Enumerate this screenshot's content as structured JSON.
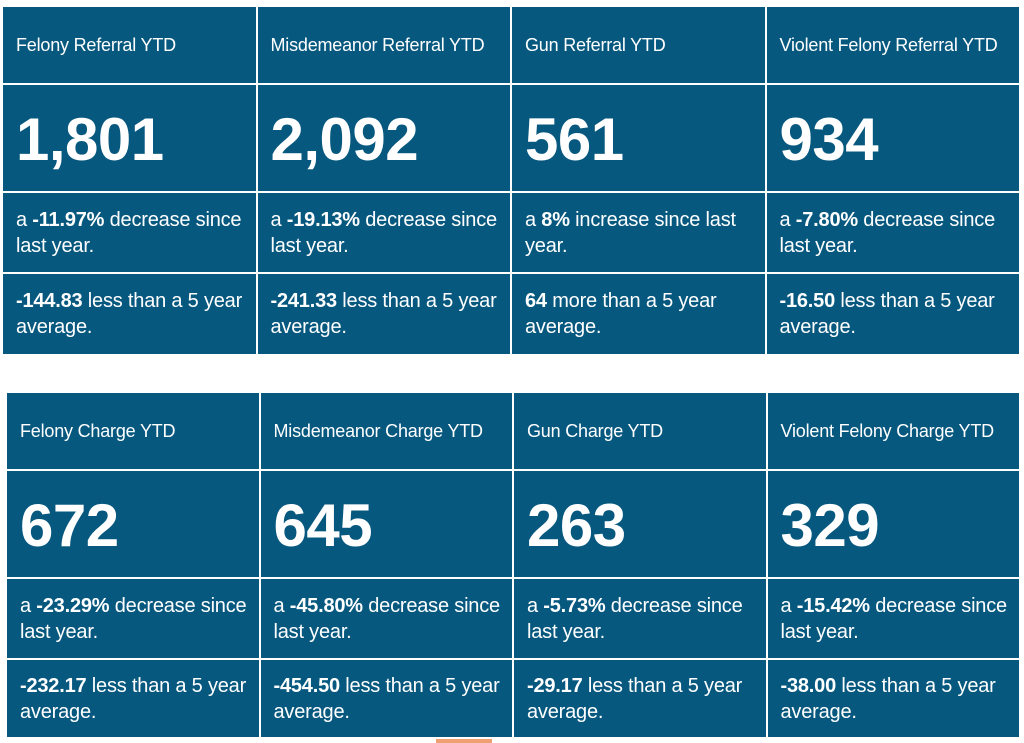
{
  "referrals": {
    "cards": [
      {
        "title": "Felony Referral YTD",
        "value": "1,801",
        "change_prefix": "a ",
        "change_value": "-11.97%",
        "change_suffix": " decrease since last year.",
        "avg_value": "-144.83",
        "avg_suffix": " less than a 5 year average."
      },
      {
        "title": "Misdemeanor Referral YTD",
        "value": "2,092",
        "change_prefix": "a ",
        "change_value": "-19.13%",
        "change_suffix": " decrease since last year.",
        "avg_value": "-241.33",
        "avg_suffix": " less than a 5 year average."
      },
      {
        "title": "Gun Referral YTD",
        "value": "561",
        "change_prefix": "a ",
        "change_value": "8%",
        "change_suffix": " increase since last year.",
        "avg_value": "64",
        "avg_suffix": " more than a 5 year average."
      },
      {
        "title": "Violent Felony Referral YTD",
        "value": "934",
        "change_prefix": "a ",
        "change_value": "-7.80%",
        "change_suffix": " decrease since last year.",
        "avg_value": "-16.50",
        "avg_suffix": " less than a 5 year average."
      }
    ]
  },
  "charges": {
    "cards": [
      {
        "title": "Felony Charge YTD",
        "value": "672",
        "change_prefix": "a ",
        "change_value": "-23.29%",
        "change_suffix": " decrease since last year.",
        "avg_value": "-232.17",
        "avg_suffix": " less than a 5 year average."
      },
      {
        "title": "Misdemeanor Charge YTD",
        "value": "645",
        "change_prefix": "a ",
        "change_value": "-45.80%",
        "change_suffix": " decrease since last year.",
        "avg_value": "-454.50",
        "avg_suffix": " less than a 5 year average."
      },
      {
        "title": "Gun Charge YTD",
        "value": "263",
        "change_prefix": "a ",
        "change_value": "-5.73%",
        "change_suffix": " decrease since last year.",
        "avg_value": "-29.17",
        "avg_suffix": " less than a 5 year average."
      },
      {
        "title": "Violent Felony Charge YTD",
        "value": "329",
        "change_prefix": "a ",
        "change_value": "-15.42%",
        "change_suffix": " decrease since last year.",
        "avg_value": "-38.00",
        "avg_suffix": " less than a 5 year average."
      }
    ]
  },
  "colors": {
    "card_background": "#07587f",
    "text": "#ffffff",
    "divider": "#ffffff"
  }
}
